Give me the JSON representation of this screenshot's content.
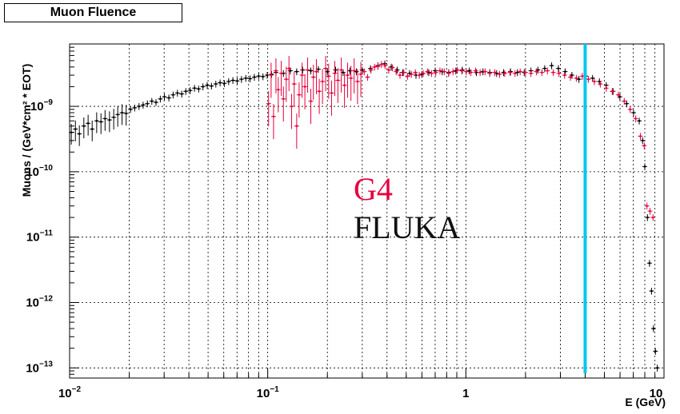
{
  "chart_data": {
    "type": "scatter",
    "title": "Muon Fluence",
    "xlabel": "E (GeV)",
    "ylabel": "Muons / (GeV*cm² * EOT)",
    "x_scale": "log",
    "y_scale": "log",
    "xlim": [
      0.01,
      10
    ],
    "ylim": [
      7e-14,
      9e-09
    ],
    "grid": true,
    "x_ticks": [
      {
        "base": "10",
        "exp": "−2"
      },
      {
        "base": "10",
        "exp": "−1"
      },
      {
        "base": "1",
        "exp": ""
      },
      {
        "base": "10",
        "exp": ""
      }
    ],
    "y_ticks": [
      {
        "base": "10",
        "exp": "−9"
      },
      {
        "base": "10",
        "exp": "−10"
      },
      {
        "base": "10",
        "exp": "−11"
      },
      {
        "base": "10",
        "exp": "−12"
      },
      {
        "base": "10",
        "exp": "−13"
      }
    ],
    "reference_line": {
      "x": 4.0,
      "color": "#00c8f0"
    },
    "series": [
      {
        "name": "FLUKA",
        "color": "#000000",
        "points": [
          [
            0.0102,
            4e-10
          ],
          [
            0.0107,
            4.5e-10
          ],
          [
            0.0112,
            3.8e-10
          ],
          [
            0.0118,
            5e-10
          ],
          [
            0.0124,
            5.5e-10
          ],
          [
            0.013,
            4.5e-10
          ],
          [
            0.0137,
            6e-10
          ],
          [
            0.0144,
            5.8e-10
          ],
          [
            0.0151,
            6.5e-10
          ],
          [
            0.0159,
            6.2e-10
          ],
          [
            0.0167,
            6.8e-10
          ],
          [
            0.0175,
            7.5e-10
          ],
          [
            0.0184,
            8e-10
          ],
          [
            0.0193,
            7.8e-10
          ],
          [
            0.0203,
            9e-10
          ],
          [
            0.0213,
            9.5e-10
          ],
          [
            0.0224,
            1e-09
          ],
          [
            0.0235,
            1.05e-09
          ],
          [
            0.0247,
            1.1e-09
          ],
          [
            0.026,
            1.2e-09
          ],
          [
            0.0273,
            1.15e-09
          ],
          [
            0.0287,
            1.3e-09
          ],
          [
            0.0301,
            1.4e-09
          ],
          [
            0.0317,
            1.35e-09
          ],
          [
            0.0333,
            1.5e-09
          ],
          [
            0.035,
            1.6e-09
          ],
          [
            0.0368,
            1.55e-09
          ],
          [
            0.0386,
            1.7e-09
          ],
          [
            0.0406,
            1.75e-09
          ],
          [
            0.0427,
            1.9e-09
          ],
          [
            0.0448,
            1.85e-09
          ],
          [
            0.0471,
            2e-09
          ],
          [
            0.0495,
            2.1e-09
          ],
          [
            0.052,
            2.05e-09
          ],
          [
            0.0547,
            2.2e-09
          ],
          [
            0.0575,
            2.3e-09
          ],
          [
            0.0604,
            2.25e-09
          ],
          [
            0.0635,
            2.4e-09
          ],
          [
            0.0667,
            2.5e-09
          ],
          [
            0.0701,
            2.45e-09
          ],
          [
            0.0737,
            2.6e-09
          ],
          [
            0.0775,
            2.7e-09
          ],
          [
            0.0814,
            2.65e-09
          ],
          [
            0.0856,
            2.8e-09
          ],
          [
            0.09,
            2.9e-09
          ],
          [
            0.0946,
            2.85e-09
          ],
          [
            0.0994,
            3e-09
          ],
          [
            0.1045,
            3.1e-09
          ],
          [
            0.11,
            3.3e-09
          ],
          [
            0.12,
            3.2e-09
          ],
          [
            0.13,
            3.5e-09
          ],
          [
            0.14,
            3.4e-09
          ],
          [
            0.15,
            3.6e-09
          ],
          [
            0.165,
            3.5e-09
          ],
          [
            0.18,
            3.7e-09
          ],
          [
            0.2,
            3.4e-09
          ],
          [
            0.22,
            3.6e-09
          ],
          [
            0.24,
            3.3e-09
          ],
          [
            0.26,
            3.5e-09
          ],
          [
            0.28,
            3.4e-09
          ],
          [
            0.3,
            3.6e-09
          ],
          [
            0.33,
            3.8e-09
          ],
          [
            0.36,
            4.2e-09
          ],
          [
            0.39,
            4.5e-09
          ],
          [
            0.42,
            4e-09
          ],
          [
            0.45,
            3.6e-09
          ],
          [
            0.48,
            3.3e-09
          ],
          [
            0.52,
            3.2e-09
          ],
          [
            0.56,
            3e-09
          ],
          [
            0.6,
            3.1e-09
          ],
          [
            0.65,
            3.3e-09
          ],
          [
            0.7,
            3.5e-09
          ],
          [
            0.76,
            3.4e-09
          ],
          [
            0.82,
            3.3e-09
          ],
          [
            0.89,
            3.5e-09
          ],
          [
            0.96,
            3.6e-09
          ],
          [
            1.04,
            3.5e-09
          ],
          [
            1.13,
            3.3e-09
          ],
          [
            1.22,
            3.4e-09
          ],
          [
            1.32,
            3.3e-09
          ],
          [
            1.43,
            3.2e-09
          ],
          [
            1.55,
            3.3e-09
          ],
          [
            1.68,
            3.4e-09
          ],
          [
            1.82,
            3.3e-09
          ],
          [
            1.97,
            3.3e-09
          ],
          [
            2.13,
            3.5e-09
          ],
          [
            2.31,
            3.6e-09
          ],
          [
            2.5,
            3.8e-09
          ],
          [
            2.71,
            4.2e-09
          ],
          [
            2.93,
            3.8e-09
          ],
          [
            3.17,
            3.4e-09
          ],
          [
            3.43,
            3e-09
          ],
          [
            3.72,
            2.6e-09
          ],
          [
            4.03,
            2.9e-09
          ],
          [
            4.36,
            2.7e-09
          ],
          [
            4.72,
            2.4e-09
          ],
          [
            5.11,
            2.1e-09
          ],
          [
            5.53,
            1.7e-09
          ],
          [
            5.99,
            1.4e-09
          ],
          [
            6.48,
            1.1e-09
          ],
          [
            7.02,
            8e-10
          ],
          [
            7.5,
            6e-10
          ],
          [
            7.8,
            3e-10
          ],
          [
            8.0,
            1.2e-10
          ],
          [
            8.25,
            2e-11
          ],
          [
            8.45,
            4e-12
          ],
          [
            8.65,
            1.5e-12
          ],
          [
            8.85,
            4e-13
          ],
          [
            9.05,
            1.8e-13
          ],
          [
            9.25,
            1e-13
          ]
        ]
      },
      {
        "name": "G4",
        "color": "#e8003d",
        "points": [
          [
            0.101,
            1.1e-09
          ],
          [
            0.104,
            3e-09
          ],
          [
            0.107,
            7e-10
          ],
          [
            0.11,
            3.5e-09
          ],
          [
            0.113,
            1.8e-09
          ],
          [
            0.117,
            3.2e-09
          ],
          [
            0.12,
            1.3e-09
          ],
          [
            0.124,
            2.6e-09
          ],
          [
            0.128,
            3.8e-09
          ],
          [
            0.132,
            1e-09
          ],
          [
            0.136,
            2.2e-09
          ],
          [
            0.14,
            5e-10
          ],
          [
            0.144,
            1.5e-09
          ],
          [
            0.149,
            3e-09
          ],
          [
            0.154,
            2e-09
          ],
          [
            0.159,
            3.6e-09
          ],
          [
            0.165,
            1.2e-09
          ],
          [
            0.17,
            2.8e-09
          ],
          [
            0.176,
            3.4e-09
          ],
          [
            0.182,
            1.7e-09
          ],
          [
            0.189,
            2.4e-09
          ],
          [
            0.196,
            3.8e-09
          ],
          [
            0.203,
            2.9e-09
          ],
          [
            0.21,
            1.6e-09
          ],
          [
            0.218,
            3.2e-09
          ],
          [
            0.226,
            2.5e-09
          ],
          [
            0.235,
            3.6e-09
          ],
          [
            0.244,
            2.1e-09
          ],
          [
            0.253,
            3e-09
          ],
          [
            0.263,
            2.7e-09
          ],
          [
            0.273,
            3.5e-09
          ],
          [
            0.284,
            2.4e-09
          ],
          [
            0.295,
            3.1e-09
          ],
          [
            0.307,
            3.4e-09
          ],
          [
            0.319,
            2.8e-09
          ],
          [
            0.332,
            3.6e-09
          ],
          [
            0.346,
            4e-09
          ],
          [
            0.36,
            4.1e-09
          ],
          [
            0.375,
            4.4e-09
          ],
          [
            0.391,
            4.2e-09
          ],
          [
            0.408,
            3.6e-09
          ],
          [
            0.426,
            3.9e-09
          ],
          [
            0.445,
            3.4e-09
          ],
          [
            0.465,
            3e-09
          ],
          [
            0.486,
            3.3e-09
          ],
          [
            0.508,
            2.9e-09
          ],
          [
            0.531,
            3.1e-09
          ],
          [
            0.556,
            3.3e-09
          ],
          [
            0.582,
            3e-09
          ],
          [
            0.61,
            3.2e-09
          ],
          [
            0.64,
            3.4e-09
          ],
          [
            0.671,
            3.2e-09
          ],
          [
            0.705,
            3.3e-09
          ],
          [
            0.74,
            3.5e-09
          ],
          [
            0.778,
            3.4e-09
          ],
          [
            0.818,
            3.2e-09
          ],
          [
            0.861,
            3.4e-09
          ],
          [
            0.906,
            3.6e-09
          ],
          [
            0.954,
            3.5e-09
          ],
          [
            1.005,
            3.4e-09
          ],
          [
            1.06,
            3.3e-09
          ],
          [
            1.12,
            3.5e-09
          ],
          [
            1.18,
            3.3e-09
          ],
          [
            1.25,
            3.4e-09
          ],
          [
            1.32,
            3.2e-09
          ],
          [
            1.4,
            3.3e-09
          ],
          [
            1.48,
            3.1e-09
          ],
          [
            1.57,
            3.2e-09
          ],
          [
            1.67,
            3.3e-09
          ],
          [
            1.77,
            3.2e-09
          ],
          [
            1.88,
            3.4e-09
          ],
          [
            2.0,
            3.3e-09
          ],
          [
            2.13,
            3.2e-09
          ],
          [
            2.27,
            3.4e-09
          ],
          [
            2.42,
            3.3e-09
          ],
          [
            2.58,
            3.5e-09
          ],
          [
            2.76,
            3.3e-09
          ],
          [
            2.95,
            3.2e-09
          ],
          [
            3.15,
            3e-09
          ],
          [
            3.37,
            2.8e-09
          ],
          [
            3.61,
            2.7e-09
          ],
          [
            3.87,
            2.9e-09
          ],
          [
            4.15,
            2.6e-09
          ],
          [
            4.45,
            2.4e-09
          ],
          [
            4.77,
            2.2e-09
          ],
          [
            5.11,
            1.9e-09
          ],
          [
            5.48,
            1.7e-09
          ],
          [
            5.88,
            1.5e-09
          ],
          [
            6.3,
            1.2e-09
          ],
          [
            6.75,
            9e-10
          ],
          [
            7.2,
            6.5e-10
          ],
          [
            7.6,
            3.5e-10
          ],
          [
            7.95,
            2.5e-10
          ],
          [
            8.2,
            3e-11
          ],
          [
            8.5,
            2.5e-11
          ],
          [
            8.8,
            2e-11
          ]
        ]
      }
    ]
  },
  "legend": [
    {
      "label": "G4",
      "color": "#e8003d"
    },
    {
      "label": "FLUKA",
      "color": "#111111"
    }
  ]
}
